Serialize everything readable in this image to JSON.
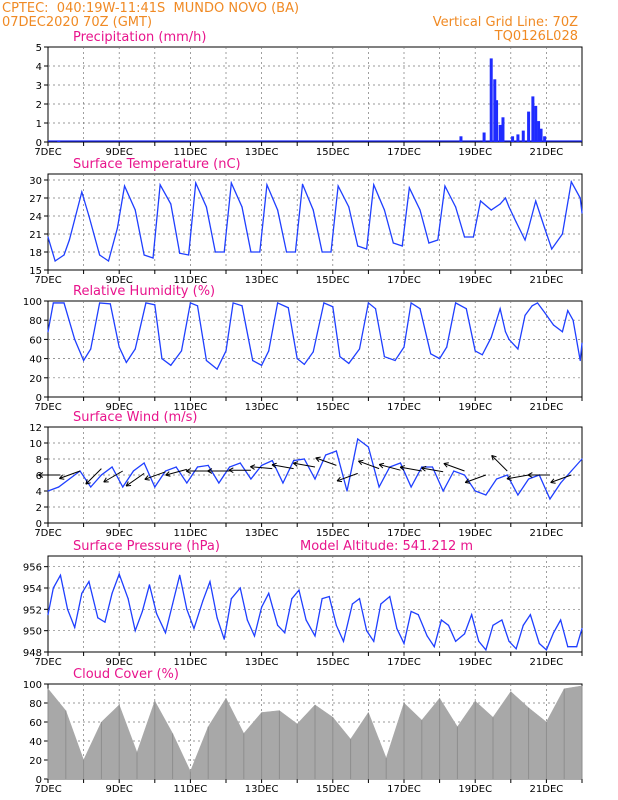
{
  "header": {
    "line1": "CPTEC:  040:19W-11:41S  MUNDO NOVO (BA)",
    "line2": "07DEC2020 70Z (GMT)",
    "grid_note": "Vertical Grid Line: 70Z",
    "code": "TQ0126L028"
  },
  "colors": {
    "line": "#1f3fff",
    "bar": "#1f2bff",
    "cloud": "#a8a8a8",
    "title": "#e8148c",
    "header": "#f08a24",
    "arrow": "#000000"
  },
  "x_axis": {
    "start_day": 7,
    "end_day": 22,
    "ticks": [
      {
        "day": 7,
        "label": "7DEC"
      },
      {
        "day": 9,
        "label": "9DEC"
      },
      {
        "day": 11,
        "label": "11DEC"
      },
      {
        "day": 13,
        "label": "13DEC"
      },
      {
        "day": 15,
        "label": "15DEC"
      },
      {
        "day": 17,
        "label": "17DEC"
      },
      {
        "day": 19,
        "label": "19DEC"
      },
      {
        "day": 21,
        "label": "21DEC"
      }
    ]
  },
  "chart_data": [
    {
      "type": "bar",
      "title": "Precipitation (mm/h)",
      "ylim": [
        0,
        5
      ],
      "yticks": [
        0,
        1,
        2,
        3,
        4,
        5
      ],
      "grid": true,
      "series": [
        {
          "x": [
            7.3,
            18.6,
            19.25,
            19.45,
            19.55,
            19.6,
            19.7,
            19.78,
            20.05,
            20.2,
            20.35,
            20.5,
            20.62,
            20.7,
            20.78,
            20.85,
            20.95
          ],
          "values": [
            0.08,
            0.3,
            0.5,
            4.4,
            3.3,
            2.2,
            0.9,
            1.3,
            0.3,
            0.4,
            0.6,
            1.6,
            2.4,
            1.9,
            1.1,
            0.7,
            0.3
          ]
        }
      ]
    },
    {
      "type": "line",
      "title": "Surface Temperature (nC)",
      "ylim": [
        15,
        31
      ],
      "yticks": [
        15,
        18,
        21,
        24,
        27,
        30
      ],
      "grid": true,
      "series": [
        {
          "x": [
            7.0,
            7.2,
            7.45,
            7.6,
            7.95,
            8.15,
            8.45,
            8.7,
            8.95,
            9.15,
            9.45,
            9.7,
            9.95,
            10.15,
            10.45,
            10.7,
            10.95,
            11.15,
            11.45,
            11.7,
            11.95,
            12.15,
            12.45,
            12.7,
            12.95,
            13.15,
            13.45,
            13.7,
            13.95,
            14.15,
            14.45,
            14.7,
            14.95,
            15.15,
            15.45,
            15.7,
            15.95,
            16.15,
            16.45,
            16.7,
            16.95,
            17.15,
            17.45,
            17.7,
            17.95,
            18.15,
            18.45,
            18.7,
            18.95,
            19.15,
            19.45,
            19.7,
            19.85,
            19.95,
            20.15,
            20.4,
            20.5,
            20.7,
            20.95,
            21.15,
            21.45,
            21.7,
            21.95,
            22.0
          ],
          "values": [
            20.5,
            16.5,
            17.5,
            20.0,
            28.0,
            24.0,
            17.5,
            16.5,
            22.0,
            29.0,
            25.0,
            17.5,
            17.0,
            29.2,
            26.0,
            17.8,
            17.5,
            29.5,
            25.5,
            18.0,
            18.0,
            29.5,
            25.5,
            18.0,
            18.0,
            29.2,
            25.0,
            18.0,
            18.0,
            29.3,
            25.0,
            18.0,
            18.0,
            29.0,
            25.5,
            19.0,
            18.5,
            29.2,
            25.0,
            19.5,
            19.0,
            28.7,
            25.0,
            19.5,
            20.0,
            29.0,
            25.5,
            20.5,
            20.5,
            26.5,
            25.0,
            26.0,
            27.0,
            25.5,
            23.0,
            20.0,
            22.0,
            26.5,
            22.0,
            18.5,
            21.0,
            29.7,
            27.0,
            24.5
          ]
        }
      ]
    },
    {
      "type": "line",
      "title": "Relative Humidity (%)",
      "ylim": [
        0,
        100
      ],
      "yticks": [
        0,
        20,
        40,
        60,
        80,
        100
      ],
      "grid": true,
      "series": [
        {
          "x": [
            7.0,
            7.15,
            7.45,
            7.75,
            8.0,
            8.2,
            8.45,
            8.75,
            9.0,
            9.2,
            9.45,
            9.75,
            10.0,
            10.2,
            10.45,
            10.75,
            11.0,
            11.2,
            11.45,
            11.75,
            12.0,
            12.2,
            12.45,
            12.75,
            13.0,
            13.2,
            13.45,
            13.75,
            14.0,
            14.2,
            14.45,
            14.75,
            15.0,
            15.2,
            15.45,
            15.75,
            16.0,
            16.2,
            16.45,
            16.75,
            17.0,
            17.2,
            17.45,
            17.75,
            18.0,
            18.2,
            18.45,
            18.75,
            19.0,
            19.2,
            19.45,
            19.7,
            19.85,
            19.95,
            20.2,
            20.4,
            20.6,
            20.75,
            20.95,
            21.2,
            21.45,
            21.6,
            21.75,
            21.95,
            22.0
          ],
          "values": [
            68,
            98,
            98,
            60,
            38,
            50,
            98,
            97,
            52,
            36,
            50,
            98,
            96,
            40,
            33,
            48,
            98,
            95,
            38,
            29,
            48,
            98,
            95,
            38,
            33,
            48,
            98,
            93,
            40,
            34,
            47,
            98,
            94,
            42,
            35,
            50,
            98,
            92,
            42,
            38,
            52,
            98,
            92,
            45,
            40,
            52,
            98,
            92,
            48,
            44,
            62,
            92,
            68,
            60,
            50,
            85,
            95,
            98,
            88,
            75,
            68,
            90,
            80,
            38,
            56
          ]
        }
      ]
    },
    {
      "type": "line",
      "title": "Surface Wind (m/s)",
      "ylim": [
        0,
        12
      ],
      "yticks": [
        0,
        2,
        4,
        6,
        8,
        10,
        12
      ],
      "grid": true,
      "series": [
        {
          "x": [
            7.0,
            7.3,
            7.6,
            7.9,
            8.2,
            8.5,
            8.8,
            9.1,
            9.4,
            9.7,
            10.0,
            10.3,
            10.6,
            10.9,
            11.2,
            11.5,
            11.8,
            12.1,
            12.4,
            12.7,
            13.0,
            13.3,
            13.6,
            13.9,
            14.2,
            14.5,
            14.8,
            15.1,
            15.4,
            15.7,
            16.0,
            16.3,
            16.6,
            16.9,
            17.2,
            17.5,
            17.8,
            18.1,
            18.4,
            18.7,
            19.0,
            19.3,
            19.6,
            19.9,
            20.2,
            20.5,
            20.8,
            21.1,
            21.4,
            21.7,
            22.0
          ],
          "values": [
            4.0,
            4.5,
            5.5,
            6.5,
            4.5,
            6.0,
            7.0,
            4.5,
            6.5,
            7.5,
            4.5,
            6.5,
            7.0,
            5.0,
            7.0,
            7.2,
            5.0,
            7.0,
            7.5,
            5.5,
            7.2,
            7.8,
            5.0,
            7.8,
            8.0,
            5.5,
            8.5,
            9.0,
            4.0,
            10.5,
            9.5,
            4.5,
            7.0,
            7.5,
            4.5,
            7.0,
            7.0,
            4.0,
            6.5,
            6.0,
            4.0,
            3.5,
            5.5,
            6.0,
            3.5,
            5.5,
            6.0,
            3.0,
            5.0,
            6.5,
            8.0
          ]
        }
      ],
      "wind_barbs": [
        {
          "day": 7.35,
          "speed": 6.0,
          "dir_deg": 180
        },
        {
          "day": 7.9,
          "speed": 6.5,
          "dir_deg": 200
        },
        {
          "day": 8.5,
          "speed": 6.8,
          "dir_deg": 225
        },
        {
          "day": 9.1,
          "speed": 6.5,
          "dir_deg": 210
        },
        {
          "day": 9.7,
          "speed": 6.2,
          "dir_deg": 215
        },
        {
          "day": 10.3,
          "speed": 6.4,
          "dir_deg": 200
        },
        {
          "day": 10.9,
          "speed": 6.7,
          "dir_deg": 195
        },
        {
          "day": 11.5,
          "speed": 6.5,
          "dir_deg": 180
        },
        {
          "day": 12.1,
          "speed": 6.5,
          "dir_deg": 180
        },
        {
          "day": 12.7,
          "speed": 6.6,
          "dir_deg": 180
        },
        {
          "day": 13.3,
          "speed": 6.8,
          "dir_deg": 175
        },
        {
          "day": 13.9,
          "speed": 6.8,
          "dir_deg": 170
        },
        {
          "day": 14.5,
          "speed": 7.0,
          "dir_deg": 170
        },
        {
          "day": 15.1,
          "speed": 7.2,
          "dir_deg": 160
        },
        {
          "day": 15.7,
          "speed": 6.2,
          "dir_deg": 200
        },
        {
          "day": 16.3,
          "speed": 6.8,
          "dir_deg": 160
        },
        {
          "day": 16.9,
          "speed": 6.6,
          "dir_deg": 165
        },
        {
          "day": 17.5,
          "speed": 6.5,
          "dir_deg": 170
        },
        {
          "day": 18.1,
          "speed": 6.4,
          "dir_deg": 170
        },
        {
          "day": 18.7,
          "speed": 6.5,
          "dir_deg": 160
        },
        {
          "day": 19.3,
          "speed": 6.0,
          "dir_deg": 200
        },
        {
          "day": 19.9,
          "speed": 6.5,
          "dir_deg": 135
        },
        {
          "day": 20.5,
          "speed": 6.0,
          "dir_deg": 190
        },
        {
          "day": 21.1,
          "speed": 6.0,
          "dir_deg": 180
        },
        {
          "day": 21.7,
          "speed": 6.0,
          "dir_deg": 200
        }
      ]
    },
    {
      "type": "line",
      "title": "Surface Pressure (hPa)",
      "annotation": "Model Altitude: 541.212 m",
      "ylim": [
        948,
        957
      ],
      "yticks": [
        948,
        950,
        952,
        954,
        956
      ],
      "grid": true,
      "series": [
        {
          "x": [
            7.0,
            7.15,
            7.35,
            7.55,
            7.75,
            7.95,
            8.15,
            8.4,
            8.6,
            8.8,
            9.0,
            9.25,
            9.45,
            9.65,
            9.85,
            10.05,
            10.3,
            10.5,
            10.7,
            10.9,
            11.1,
            11.35,
            11.55,
            11.75,
            11.95,
            12.15,
            12.4,
            12.6,
            12.8,
            13.0,
            13.2,
            13.45,
            13.65,
            13.85,
            14.05,
            14.25,
            14.5,
            14.7,
            14.9,
            15.1,
            15.3,
            15.55,
            15.75,
            15.95,
            16.15,
            16.35,
            16.6,
            16.8,
            17.0,
            17.2,
            17.4,
            17.65,
            17.85,
            18.05,
            18.25,
            18.45,
            18.7,
            18.9,
            19.1,
            19.3,
            19.5,
            19.75,
            19.95,
            20.15,
            20.35,
            20.55,
            20.8,
            21.0,
            21.2,
            21.4,
            21.6,
            21.85,
            22.0
          ],
          "values": [
            951.5,
            954.0,
            955.2,
            952.0,
            950.3,
            953.5,
            954.6,
            951.2,
            950.8,
            953.5,
            955.3,
            953.0,
            950.0,
            951.8,
            954.3,
            951.6,
            949.8,
            952.5,
            955.2,
            952.0,
            950.2,
            952.8,
            954.6,
            951.2,
            949.2,
            953.0,
            954.0,
            951.0,
            949.5,
            952.2,
            953.5,
            950.5,
            949.8,
            953.0,
            953.8,
            951.0,
            949.5,
            953.0,
            953.2,
            950.5,
            949.0,
            952.5,
            953.0,
            950.0,
            949.0,
            952.5,
            953.2,
            950.2,
            948.8,
            951.8,
            951.5,
            949.5,
            948.5,
            951.0,
            950.5,
            949.0,
            949.7,
            951.5,
            949.0,
            948.2,
            950.5,
            951.0,
            949.0,
            948.3,
            950.5,
            951.5,
            948.8,
            948.2,
            949.8,
            951.0,
            948.5,
            948.5,
            950.2
          ]
        }
      ]
    },
    {
      "type": "bar",
      "title": "Cloud Cover (%)",
      "ylim": [
        0,
        100
      ],
      "yticks": [
        0,
        20,
        40,
        60,
        80,
        100
      ],
      "grid": true,
      "series": [
        {
          "x": [
            7.0,
            7.5,
            8.0,
            8.5,
            9.0,
            9.5,
            10.0,
            10.5,
            11.0,
            11.5,
            12.0,
            12.5,
            13.0,
            13.5,
            14.0,
            14.5,
            15.0,
            15.5,
            16.0,
            16.5,
            17.0,
            17.5,
            18.0,
            18.5,
            19.0,
            19.5,
            20.0,
            20.5,
            21.0,
            21.5,
            22.0
          ],
          "values": [
            95,
            72,
            20,
            60,
            78,
            28,
            82,
            48,
            8,
            55,
            85,
            48,
            70,
            72,
            58,
            78,
            65,
            42,
            70,
            22,
            80,
            62,
            85,
            55,
            82,
            65,
            92,
            75,
            60,
            95,
            98
          ]
        }
      ]
    }
  ]
}
